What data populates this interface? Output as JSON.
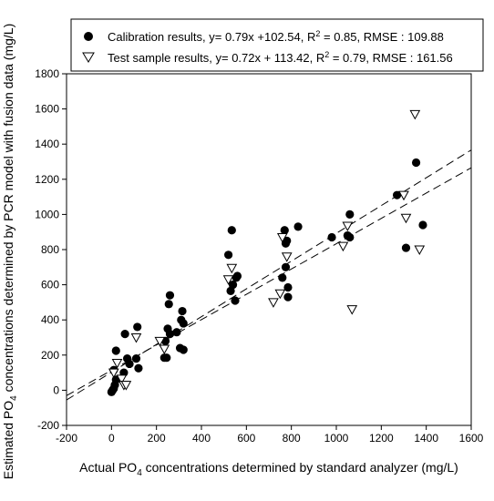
{
  "chart_data": {
    "type": "scatter",
    "title": "",
    "xlabel": {
      "pre": "Actual PO",
      "sub": "4",
      "post": " concentrations determined by standard analyzer (mg/L)"
    },
    "ylabel": {
      "pre": "Estimated PO",
      "sub": "4",
      "post": " concentrations determined by PCR model with fusion data (mg/L)"
    },
    "xlim": [
      -200,
      1600
    ],
    "ylim": [
      -200,
      1800
    ],
    "xticks": [
      -200,
      0,
      200,
      400,
      600,
      800,
      1000,
      1200,
      1400,
      1600
    ],
    "yticks": [
      -200,
      0,
      200,
      400,
      600,
      800,
      1000,
      1200,
      1400,
      1600,
      1800
    ],
    "grid": false,
    "legend_position": "top",
    "legend": [
      {
        "marker": "filled-circle",
        "pre": "Calibration results, y= 0.79x +102.54, R",
        "sup": "2",
        "post": " = 0.85, RMSE : 109.88"
      },
      {
        "marker": "open-triangle-down",
        "pre": "Test sample results, y= 0.72x + 113.42, R",
        "sup": "2",
        "post": " = 0.79, RMSE : 161.56"
      }
    ],
    "series": [
      {
        "marker": "filled-circle",
        "points": [
          [
            0,
            -10
          ],
          [
            5,
            0
          ],
          [
            10,
            10
          ],
          [
            15,
            30
          ],
          [
            20,
            60
          ],
          [
            10,
            115
          ],
          [
            20,
            225
          ],
          [
            60,
            320
          ],
          [
            70,
            180
          ],
          [
            80,
            150
          ],
          [
            55,
            100
          ],
          [
            110,
            180
          ],
          [
            120,
            125
          ],
          [
            115,
            360
          ],
          [
            235,
            185
          ],
          [
            245,
            185
          ],
          [
            240,
            280
          ],
          [
            250,
            350
          ],
          [
            260,
            320
          ],
          [
            255,
            490
          ],
          [
            260,
            540
          ],
          [
            290,
            330
          ],
          [
            305,
            240
          ],
          [
            310,
            400
          ],
          [
            315,
            450
          ],
          [
            320,
            380
          ],
          [
            320,
            230
          ],
          [
            520,
            770
          ],
          [
            535,
            910
          ],
          [
            530,
            565
          ],
          [
            540,
            600
          ],
          [
            550,
            510
          ],
          [
            555,
            640
          ],
          [
            560,
            650
          ],
          [
            760,
            640
          ],
          [
            770,
            910
          ],
          [
            775,
            835
          ],
          [
            780,
            850
          ],
          [
            775,
            700
          ],
          [
            785,
            585
          ],
          [
            785,
            530
          ],
          [
            830,
            930
          ],
          [
            980,
            870
          ],
          [
            1050,
            880
          ],
          [
            1060,
            1000
          ],
          [
            1060,
            870
          ],
          [
            1270,
            1110
          ],
          [
            1310,
            810
          ],
          [
            1355,
            1295
          ],
          [
            1385,
            940
          ]
        ]
      },
      {
        "marker": "open-triangle-down",
        "points": [
          [
            10,
            100
          ],
          [
            25,
            155
          ],
          [
            45,
            65
          ],
          [
            55,
            30
          ],
          [
            65,
            30
          ],
          [
            110,
            300
          ],
          [
            215,
            280
          ],
          [
            235,
            235
          ],
          [
            520,
            630
          ],
          [
            535,
            695
          ],
          [
            720,
            500
          ],
          [
            750,
            550
          ],
          [
            760,
            870
          ],
          [
            780,
            760
          ],
          [
            1030,
            820
          ],
          [
            1050,
            935
          ],
          [
            1070,
            460
          ],
          [
            1300,
            1110
          ],
          [
            1310,
            980
          ],
          [
            1350,
            1570
          ],
          [
            1370,
            800
          ]
        ]
      }
    ],
    "fit_lines": [
      {
        "slope": 0.79,
        "intercept": 102.54,
        "style": "dashed"
      },
      {
        "slope": 0.72,
        "intercept": 113.42,
        "style": "dashed"
      }
    ]
  }
}
